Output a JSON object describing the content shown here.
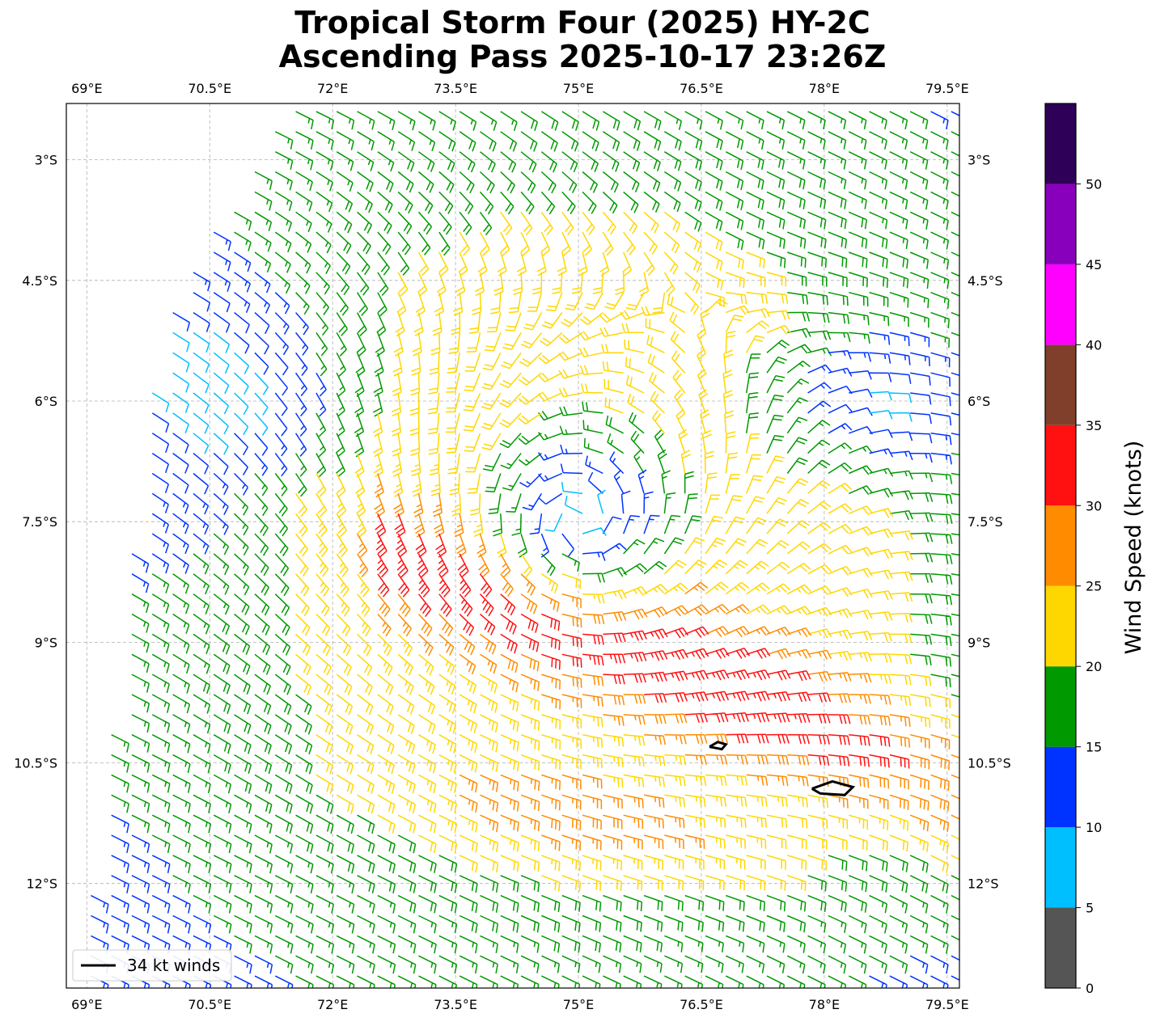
{
  "title_line1": "Tropical Storm Four (2025) HY-2C",
  "title_line2": "Ascending Pass 2025-10-17 23:26Z",
  "map": {
    "lon_range": [
      68.75,
      79.65
    ],
    "lat_range": [
      -13.3,
      -2.3
    ],
    "lon_ticks": [
      {
        "value": 69,
        "label": "69°E"
      },
      {
        "value": 70.5,
        "label": "70.5°E"
      },
      {
        "value": 72,
        "label": "72°E"
      },
      {
        "value": 73.5,
        "label": "73.5°E"
      },
      {
        "value": 75,
        "label": "75°E"
      },
      {
        "value": 76.5,
        "label": "76.5°E"
      },
      {
        "value": 78,
        "label": "78°E"
      },
      {
        "value": 79.5,
        "label": "79.5°E"
      }
    ],
    "lat_ticks": [
      {
        "value": -3,
        "label": "3°S"
      },
      {
        "value": -4.5,
        "label": "4.5°S"
      },
      {
        "value": -6,
        "label": "6°S"
      },
      {
        "value": -7.5,
        "label": "7.5°S"
      },
      {
        "value": -9,
        "label": "9°S"
      },
      {
        "value": -10.5,
        "label": "10.5°S"
      },
      {
        "value": -12,
        "label": "12°S"
      }
    ],
    "grid": true,
    "storm_center": {
      "lon": 75.0,
      "lat": -7.5
    },
    "contours_34kt": [
      [
        [
          76.6,
          -10.3
        ],
        [
          76.7,
          -10.24
        ],
        [
          76.8,
          -10.27
        ],
        [
          76.75,
          -10.33
        ],
        [
          76.6,
          -10.3
        ]
      ],
      [
        [
          77.85,
          -10.82
        ],
        [
          78.1,
          -10.73
        ],
        [
          78.35,
          -10.8
        ],
        [
          78.25,
          -10.9
        ],
        [
          77.95,
          -10.88
        ],
        [
          77.85,
          -10.82
        ]
      ]
    ]
  },
  "legend": {
    "label": "34 kt winds",
    "placement": "lower-left"
  },
  "colorbar": {
    "label": "Wind Speed (knots)",
    "bounds": [
      0,
      5,
      10,
      15,
      20,
      25,
      30,
      35,
      40,
      45,
      50,
      55
    ],
    "tick_labels": [
      "0",
      "5",
      "10",
      "15",
      "20",
      "25",
      "30",
      "35",
      "40",
      "45",
      "50"
    ],
    "colors": [
      "#555555",
      "#00bfff",
      "#0033ff",
      "#009900",
      "#ffd700",
      "#ff8c00",
      "#ff1111",
      "#7f3f2a",
      "#ff00ff",
      "#8800bb",
      "#2e0058"
    ]
  }
}
